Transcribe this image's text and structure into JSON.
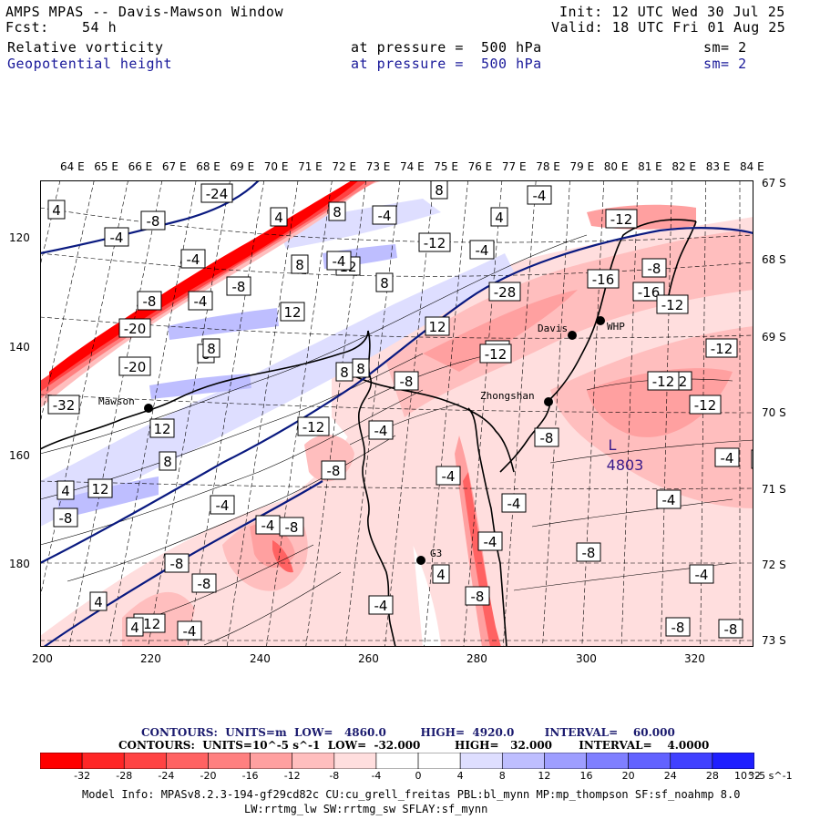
{
  "header": {
    "title": "AMPS MPAS -- Davis-Mawson Window",
    "init": "Init: 12 UTC Wed 30 Jul 25",
    "fcst_label": "Fcst:",
    "fcst_value": "54 h",
    "valid": "Valid: 18 UTC Fri 01 Aug 25",
    "field1_name": "Relative vorticity",
    "field1_pressure": "at pressure =  500 hPa",
    "field1_sm": "sm= 2",
    "field2_name": "Geopotential height",
    "field2_pressure": "at pressure =  500 hPa",
    "field2_sm": "sm= 2"
  },
  "axes": {
    "lon_labels": [
      "64 E",
      "65 E",
      "66 E",
      "67 E",
      "68 E",
      "69 E",
      "70 E",
      "71 E",
      "72 E",
      "73 E",
      "74 E",
      "75 E",
      "76 E",
      "77 E",
      "78 E",
      "79 E",
      "80 E",
      "81 E",
      "82 E",
      "83 E",
      "84 E"
    ],
    "lat_labels": [
      "67 S",
      "68 S",
      "69 S",
      "70 S",
      "71 S",
      "72 S",
      "73 S"
    ],
    "y_ticks": [
      "120",
      "140",
      "160",
      "180"
    ],
    "x_ticks": [
      "200",
      "220",
      "240",
      "260",
      "280",
      "300",
      "320"
    ]
  },
  "stations": [
    {
      "name": "Mawson"
    },
    {
      "name": "Davis"
    },
    {
      "name": "WHP"
    },
    {
      "name": "Zhongshan"
    },
    {
      "name": "G3"
    }
  ],
  "low_center": {
    "symbol": "L",
    "value": "4803"
  },
  "contour_labels": [
    "4",
    "-4",
    "-8",
    "-24",
    "4",
    "8",
    "-4",
    "4",
    "-4",
    "8",
    "-4",
    "8",
    "12",
    "-12",
    "-12",
    "-4",
    "-8",
    "-4",
    "-28",
    "-16",
    "-8",
    "8",
    "12",
    "-4",
    "-16",
    "-8",
    "8",
    "12",
    "-4",
    "-20",
    "8",
    "-12",
    "8",
    "-12",
    "-12",
    "-20",
    "-8",
    "-12",
    "-12",
    "-32",
    "12",
    "-12",
    "8",
    "-8",
    "8",
    "-4",
    "-8",
    "12",
    "4",
    "-8",
    "-12",
    "8",
    "-4",
    "-4",
    "-4",
    "-8",
    "-8",
    "-4",
    "-8",
    "-4",
    "4",
    "-8",
    "4",
    "-4",
    "-12",
    "-4",
    "-8",
    "4",
    "-8",
    "-4",
    "-4",
    "-8",
    "-4"
  ],
  "contours_line1": {
    "text": "CONTOURS:  UNITS=m  LOW=   4860.0         HIGH=  4920.0        INTERVAL=    60.000",
    "color": "#1a1a6e"
  },
  "contours_line2": {
    "text": "CONTOURS:  UNITS=10^-5 s^-1  LOW=  -32.000         HIGH=   32.000       INTERVAL=    4.0000",
    "color": "#000000"
  },
  "colorbar": {
    "colors": [
      "#ff0000",
      "#ff2626",
      "#ff4343",
      "#ff6262",
      "#ff8080",
      "#ffa0a0",
      "#ffbebe",
      "#ffdede",
      "#ffffff",
      "#ffffff",
      "#dedeff",
      "#bebeff",
      "#9e9eff",
      "#7f7fff",
      "#6262ff",
      "#4141ff",
      "#1f1fff"
    ],
    "labels": [
      "-32",
      "-28",
      "-24",
      "-20",
      "-16",
      "-12",
      "-8",
      "-4",
      "0",
      "4",
      "8",
      "12",
      "16",
      "20",
      "24",
      "28",
      "32"
    ],
    "unit": "10^-5 s^-1"
  },
  "footer": {
    "line1": "Model Info: MPASv8.2.3-194-gf29cd82c CU:cu_grell_freitas PBL:bl_mynn MP:mp_thompson SF:sf_noahmp 8.0",
    "line2": "LW:rrtmg_lw SW:rrtmg_sw SFLAY:sf_mynn"
  }
}
